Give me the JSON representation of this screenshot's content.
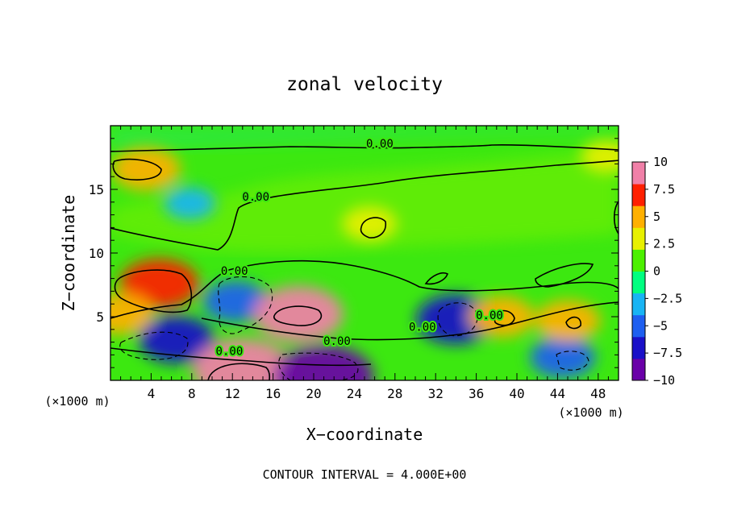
{
  "chart_data": {
    "type": "heatmap",
    "title": "zonal velocity",
    "xlabel": "X−coordinate",
    "ylabel": "Z−coordinate",
    "x_unit": "(×1000 m)",
    "y_unit": "(×1000 m)",
    "footer": "CONTOUR INTERVAL = 4.000E+00",
    "xlim": [
      0,
      50
    ],
    "ylim": [
      0,
      20
    ],
    "x_ticks": [
      4,
      8,
      12,
      16,
      20,
      24,
      28,
      32,
      36,
      40,
      44,
      48
    ],
    "y_ticks": [
      5,
      10,
      15
    ],
    "colorbar": {
      "range": [
        -10,
        10
      ],
      "tick_labels": [
        "10",
        "7.5",
        "5",
        "2.5",
        "0",
        "−2.5",
        "−5",
        "−7.5",
        "−10"
      ],
      "tick_values": [
        10,
        7.5,
        5,
        2.5,
        0,
        -2.5,
        -5,
        -7.5,
        -10
      ],
      "colors": [
        "#6a00a8",
        "#1a10c8",
        "#1e5ff0",
        "#18b4f4",
        "#00ff80",
        "#4cf000",
        "#e8f000",
        "#ffb000",
        "#ff2000",
        "#f080a8"
      ]
    },
    "contour_labels": [
      {
        "text": "0.00",
        "x": 26.5,
        "y": 18.3
      },
      {
        "text": "0.00",
        "x": 14.3,
        "y": 14.1
      },
      {
        "text": "0.00",
        "x": 12.2,
        "y": 8.3
      },
      {
        "text": "0.00",
        "x": 30.7,
        "y": 3.9
      },
      {
        "text": "0.00",
        "x": 22.3,
        "y": 2.8
      },
      {
        "text": "0.00",
        "x": 11.7,
        "y": 2.0
      },
      {
        "text": "0.00",
        "x": 37.3,
        "y": 4.8
      }
    ],
    "field_features": [
      {
        "x": 3.5,
        "y": 16.6,
        "value": 5.5
      },
      {
        "x": 4.8,
        "y": 7.6,
        "value": 7.0
      },
      {
        "x": 1.0,
        "y": 5.2,
        "value": 5.0
      },
      {
        "x": 7.8,
        "y": 13.9,
        "value": -3.0
      },
      {
        "x": 6.5,
        "y": 3.2,
        "value": -6.5
      },
      {
        "x": 12.3,
        "y": 6.2,
        "value": -5.0
      },
      {
        "x": 13.0,
        "y": 0.8,
        "value": 10.0
      },
      {
        "x": 18.5,
        "y": 5.2,
        "value": 8.5
      },
      {
        "x": 21.0,
        "y": 0.3,
        "value": -10.0
      },
      {
        "x": 25.5,
        "y": 12.3,
        "value": 3.5
      },
      {
        "x": 34.0,
        "y": 4.8,
        "value": -7.0
      },
      {
        "x": 38.5,
        "y": 5.0,
        "value": 5.0
      },
      {
        "x": 44.5,
        "y": 1.8,
        "value": -5.0
      },
      {
        "x": 45.0,
        "y": 4.7,
        "value": 5.0
      },
      {
        "x": 48.8,
        "y": 17.6,
        "value": 3.0
      }
    ]
  }
}
